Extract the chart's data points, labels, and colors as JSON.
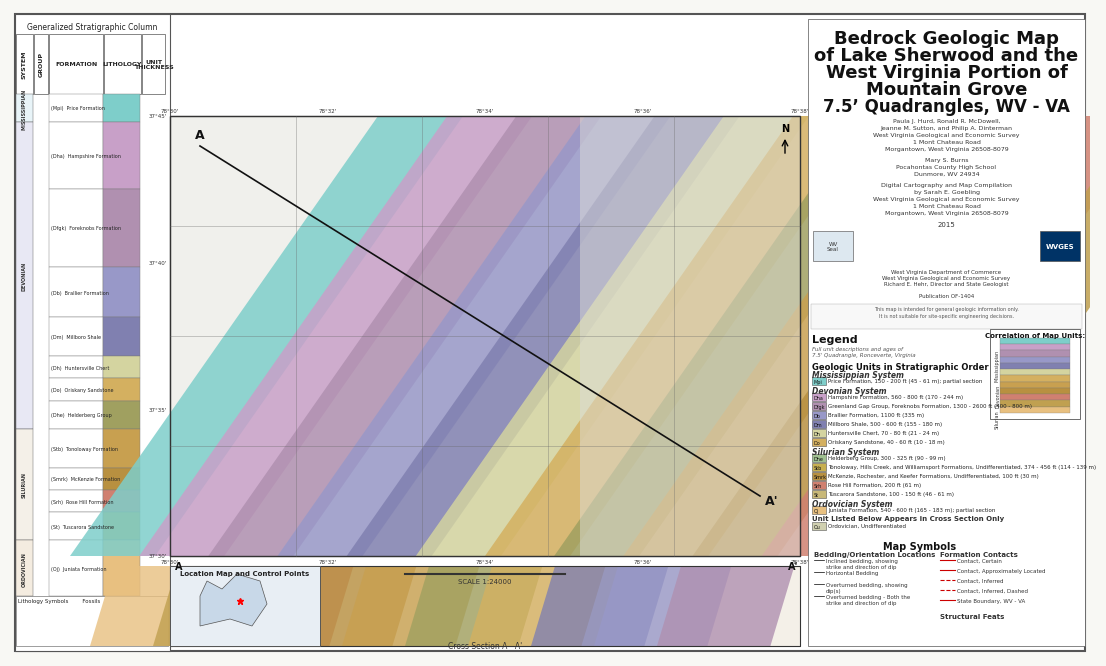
{
  "title_line1": "Bedrock Geologic Map",
  "title_line2": "of Lake Sherwood and the",
  "title_line3": "West Virginia Portion of",
  "title_line4": "Mountain Grove",
  "title_line5": "7.5’ Quadrangles, WV - VA",
  "bg_color": "#f5f5f0",
  "map_bg": "#e8e8e8",
  "border_color": "#333333",
  "title_fontsize": 16,
  "subtitle_fontsize": 7,
  "legend_title": "Legend",
  "map_colors": {
    "pine_formation": "#7ececa",
    "hampshire_formation": "#c8a0c8",
    "foreknobs_formation": "#b090b0",
    "brallier_formation": "#9898c8",
    "millboro_shale": "#8080b0",
    "huntersville_chert": "#d4d4a0",
    "oriskany_sandstone": "#d4b060",
    "helderberg_group": "#a0a060",
    "tonoloway": "#c8a050",
    "mckenzie": "#b89040",
    "rose_hill": "#d08070",
    "tuscarora": "#c0a050",
    "juniata": "#e8c080",
    "ordovician_undiff": "#d0d0b0",
    "topography": "#d8d8d0"
  },
  "geologic_units": [
    {
      "code": "Mpi",
      "name": "Price Formation, 150 - 200 ft (45 - 61 m); partial section",
      "color": "#7ececa"
    },
    {
      "code": "Dha",
      "name": "Hampshire Formation, 560 - 800 ft (170 - 244 m)",
      "color": "#c8a0c8"
    },
    {
      "code": "Dfgk",
      "name": "Greenland Gap Group, Foreknobs Formation, 1300 - 2600 ft (400 - 800 m)",
      "color": "#b090b0"
    },
    {
      "code": "Db",
      "name": "Brallier Formation, 1100 ft (335 m)",
      "color": "#9898c8"
    },
    {
      "code": "Dm",
      "name": "Millboro Shale, 500 - 600 ft (155 - 180 m)",
      "color": "#8080b0"
    },
    {
      "code": "Dh",
      "name": "Huntersville Chert, 70 - 80 ft (21 - 24 m)",
      "color": "#d4d4a0"
    },
    {
      "code": "Do",
      "name": "Oriskany Sandstone, 40 - 60 ft (10 - 18 m)",
      "color": "#d4b060"
    },
    {
      "code": "Dhe",
      "name": "Helderberg Group, 300 - 325 ft (90 - 99 m)",
      "color": "#a0c090"
    },
    {
      "code": "Stb",
      "name": "Tonoloway, Hills Creek, and Williamsport Formations, Undifferentiated, 374 - 456 ft (114 - 139 m)",
      "color": "#c8b050"
    },
    {
      "code": "Smrk",
      "name": "McKenzie, Rochester, and Keefer Formations, Undifferentiated, 100 ft (30 m)",
      "color": "#b89040"
    },
    {
      "code": "Srh",
      "name": "Rose Hill Formation, 200 ft (61 m)",
      "color": "#d08070"
    },
    {
      "code": "St",
      "name": "Tuscarora Sandstone, 100 - 150 ft (46 - 61 m)",
      "color": "#c8b878"
    },
    {
      "code": "Oj",
      "name": "Juniata Formation, 540 - 600 ft (165 - 183 m); partial section",
      "color": "#e8c080"
    },
    {
      "code": "Ou",
      "name": "Ordovician, Undifferentiated",
      "color": "#d0d0b0"
    }
  ],
  "authors": "Paula J. Hurd, Ronald R. McDowell,\nJeanne M. Sutton, and Philip A. Dinterman\nWest Virginia Geological and Economic Survey\n1 Mont Chateau Road\nMorgantown, West Virginia 26508-8079",
  "author2": "Mary S. Burns\nPocahontas County High School\nDunmore, WV 24934",
  "digital": "Digital Cartography and Map Compilation\nby Sarah E. Goebling\nWest Virginia Geological and Economic Survey\n1 Mont Chateau Road\nMorgantown, West Virginia 26508-8079",
  "year": "2015"
}
